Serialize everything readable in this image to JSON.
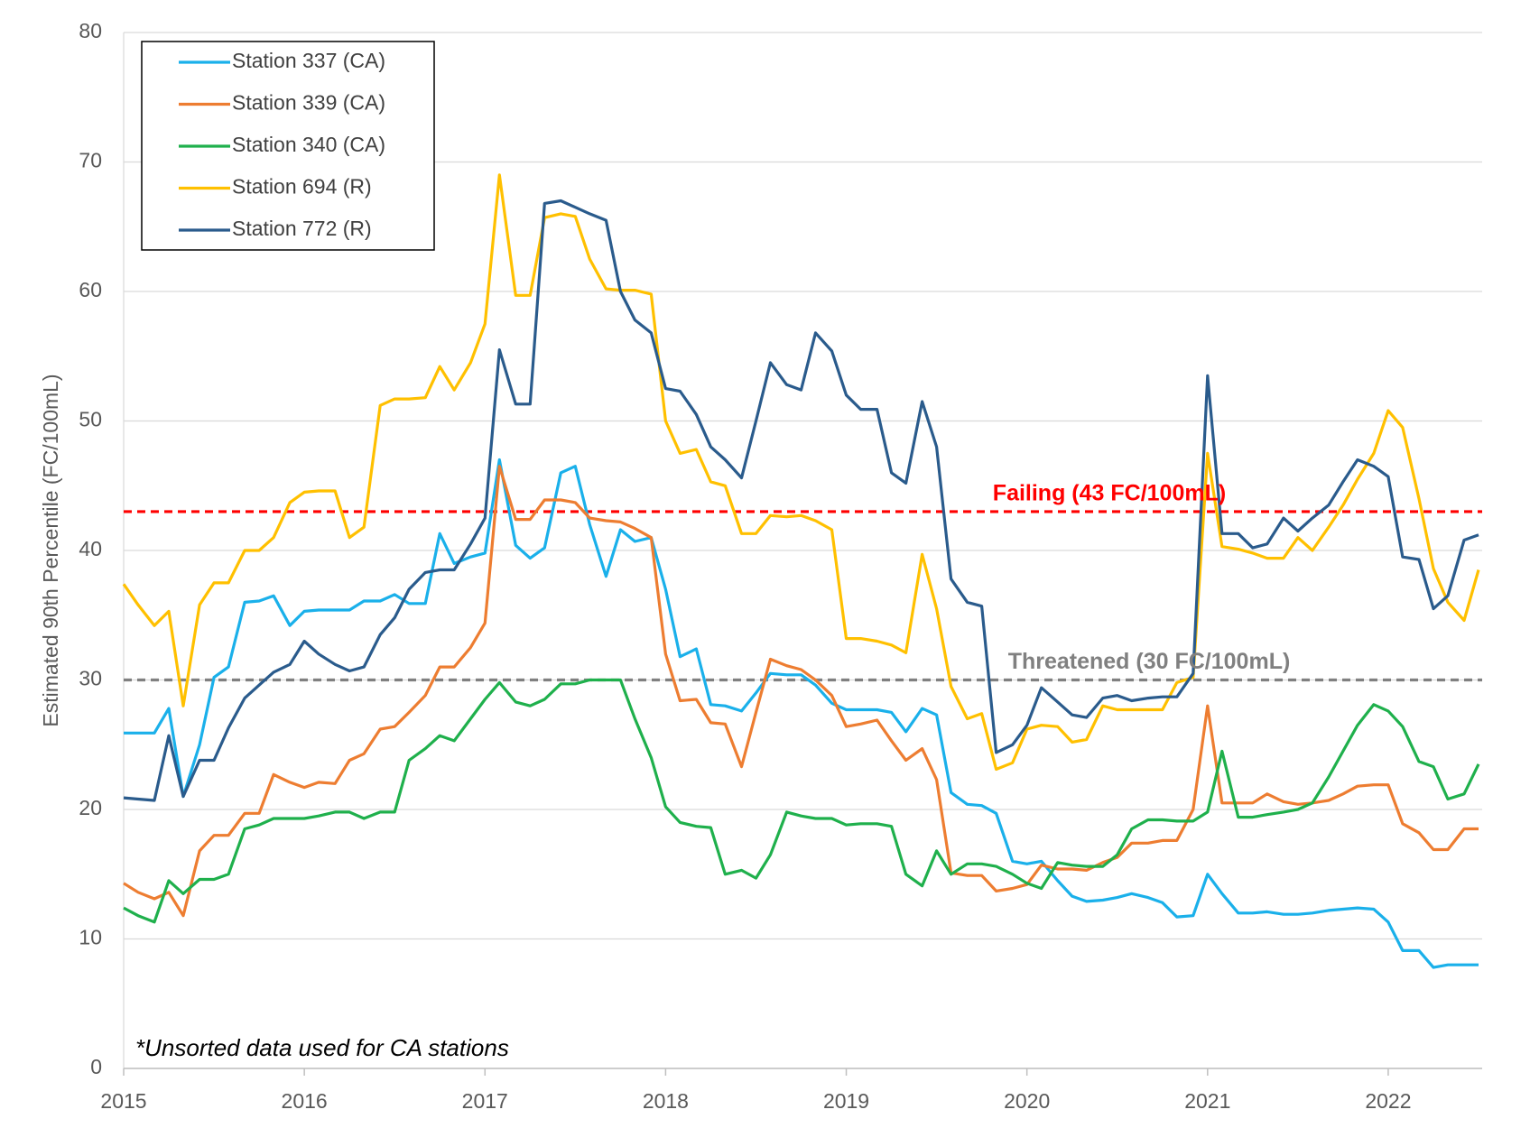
{
  "chart_data": {
    "type": "line",
    "ylabel": "Estimated 90th Percentile (FC/100mL)",
    "annotation": "*Unsorted data used for CA stations",
    "x": [
      2015,
      2015.08,
      2015.17,
      2015.25,
      2015.33,
      2015.42,
      2015.5,
      2015.58,
      2015.67,
      2015.75,
      2015.83,
      2015.92,
      2016,
      2016.08,
      2016.17,
      2016.25,
      2016.33,
      2016.42,
      2016.5,
      2016.58,
      2016.67,
      2016.75,
      2016.83,
      2016.92,
      2017,
      2017.08,
      2017.17,
      2017.25,
      2017.33,
      2017.42,
      2017.5,
      2017.58,
      2017.67,
      2017.75,
      2017.83,
      2017.92,
      2018,
      2018.08,
      2018.17,
      2018.25,
      2018.33,
      2018.42,
      2018.5,
      2018.58,
      2018.67,
      2018.75,
      2018.83,
      2018.92,
      2019,
      2019.08,
      2019.17,
      2019.25,
      2019.33,
      2019.42,
      2019.5,
      2019.58,
      2019.67,
      2019.75,
      2019.83,
      2019.92,
      2020,
      2020.08,
      2020.17,
      2020.25,
      2020.33,
      2020.42,
      2020.5,
      2020.58,
      2020.67,
      2020.75,
      2020.83,
      2020.92,
      2021,
      2021.08,
      2021.17,
      2021.25,
      2021.33,
      2021.42,
      2021.5,
      2021.58,
      2021.67,
      2021.75,
      2021.83,
      2021.92,
      2022,
      2022.08,
      2022.17,
      2022.25,
      2022.33,
      2022.42,
      2022.5
    ],
    "series": [
      {
        "name": "Station 337 (CA)",
        "color": "#1ab0ea",
        "values": [
          25.9,
          25.9,
          25.9,
          27.8,
          21,
          25,
          30.2,
          31,
          36,
          36.1,
          36.5,
          34.2,
          35.3,
          35.4,
          35.4,
          35.4,
          36.1,
          36.1,
          36.6,
          35.9,
          35.9,
          41.3,
          39,
          39.5,
          39.8,
          47,
          40.4,
          39.4,
          40.2,
          46,
          46.5,
          42,
          38,
          41.6,
          40.7,
          41,
          37,
          31.8,
          32.4,
          28.1,
          28,
          27.6,
          29,
          30.5,
          30.4,
          30.4,
          29.6,
          28.2,
          27.7,
          27.7,
          27.7,
          27.5,
          26,
          27.8,
          27.3,
          21.3,
          20.4,
          20.3,
          19.7,
          16,
          15.8,
          16,
          14.5,
          13.3,
          12.9,
          13,
          13.2,
          13.5,
          13.2,
          12.8,
          11.7,
          11.8,
          15,
          13.5,
          12,
          12,
          12.1,
          11.9,
          11.9,
          12,
          12.2,
          12.3,
          12.4,
          12.3,
          11.3,
          9.1,
          9.1,
          7.8,
          8,
          8,
          8
        ]
      },
      {
        "name": "Station 339 (CA)",
        "color": "#ed7d31",
        "values": [
          14.3,
          13.6,
          13.1,
          13.6,
          11.8,
          16.8,
          18,
          18,
          19.7,
          19.7,
          22.7,
          22.1,
          21.7,
          22.1,
          22,
          23.8,
          24.3,
          26.2,
          26.4,
          27.5,
          28.8,
          31,
          31,
          32.5,
          34.4,
          46.5,
          42.4,
          42.4,
          43.9,
          43.9,
          43.7,
          42.5,
          42.3,
          42.2,
          41.7,
          41,
          32,
          28.4,
          28.5,
          26.7,
          26.6,
          23.3,
          27.5,
          31.6,
          31.1,
          30.8,
          30,
          28.8,
          26.4,
          26.6,
          26.9,
          25.3,
          23.8,
          24.7,
          22.3,
          15.1,
          14.9,
          14.9,
          13.7,
          13.9,
          14.2,
          15.7,
          15.4,
          15.4,
          15.3,
          15.9,
          16.3,
          17.4,
          17.4,
          17.6,
          17.6,
          20,
          28,
          20.5,
          20.5,
          20.5,
          21.2,
          20.6,
          20.4,
          20.5,
          20.7,
          21.2,
          21.8,
          21.9,
          21.9,
          18.9,
          18.2,
          16.9,
          16.9,
          18.5,
          18.5
        ]
      },
      {
        "name": "Station 340 (CA)",
        "color": "#1fb04c",
        "values": [
          12.4,
          11.8,
          11.3,
          14.5,
          13.5,
          14.6,
          14.6,
          15,
          18.5,
          18.8,
          19.3,
          19.3,
          19.3,
          19.5,
          19.8,
          19.8,
          19.3,
          19.8,
          19.8,
          23.8,
          24.7,
          25.7,
          25.3,
          27,
          28.5,
          29.8,
          28.3,
          28,
          28.5,
          29.7,
          29.7,
          30,
          30,
          30,
          27,
          24,
          20.2,
          19,
          18.7,
          18.6,
          15,
          15.3,
          14.7,
          16.5,
          19.8,
          19.5,
          19.3,
          19.3,
          18.8,
          18.9,
          18.9,
          18.7,
          15,
          14.1,
          16.8,
          15,
          15.8,
          15.8,
          15.6,
          15,
          14.3,
          13.9,
          15.9,
          15.7,
          15.6,
          15.6,
          16.5,
          18.5,
          19.2,
          19.2,
          19.1,
          19.1,
          19.8,
          24.5,
          19.4,
          19.4,
          19.6,
          19.8,
          20,
          20.5,
          22.5,
          24.5,
          26.5,
          28.1,
          27.6,
          26.4,
          23.7,
          23.3,
          20.8,
          21.2,
          23.5
        ]
      },
      {
        "name": "Station 694 (R)",
        "color": "#ffc000",
        "values": [
          37.4,
          35.8,
          34.2,
          35.3,
          28,
          35.8,
          37.5,
          37.5,
          40,
          40,
          41,
          43.7,
          44.5,
          44.6,
          44.6,
          41,
          41.8,
          51.2,
          51.7,
          51.7,
          51.8,
          54.2,
          52.4,
          54.5,
          57.5,
          69,
          59.7,
          59.7,
          65.7,
          66,
          65.8,
          62.5,
          60.2,
          60.1,
          60.1,
          59.8,
          50,
          47.5,
          47.8,
          45.3,
          45,
          41.3,
          41.3,
          42.7,
          42.6,
          42.7,
          42.3,
          41.6,
          33.2,
          33.2,
          33,
          32.7,
          32.1,
          39.7,
          35.5,
          29.5,
          27,
          27.4,
          23.1,
          23.6,
          26.2,
          26.5,
          26.4,
          25.2,
          25.4,
          28,
          27.7,
          27.7,
          27.7,
          27.7,
          29.8,
          30.2,
          47.5,
          40.3,
          40.1,
          39.8,
          39.4,
          39.4,
          41,
          40,
          41.8,
          43.5,
          45.5,
          47.5,
          50.8,
          49.5,
          44,
          38.6,
          36,
          34.6,
          38.5
        ]
      },
      {
        "name": "Station 772 (R)",
        "color": "#2a5b8c",
        "values": [
          20.9,
          20.8,
          20.7,
          25.7,
          21,
          23.8,
          23.8,
          26.3,
          28.6,
          29.6,
          30.6,
          31.2,
          33,
          32,
          31.2,
          30.7,
          31,
          33.5,
          34.8,
          37,
          38.3,
          38.5,
          38.5,
          40.5,
          42.5,
          55.5,
          51.3,
          51.3,
          66.8,
          67,
          66.5,
          66,
          65.5,
          60,
          57.8,
          56.8,
          52.5,
          52.3,
          50.5,
          48,
          47,
          45.6,
          50,
          54.5,
          52.8,
          52.4,
          56.8,
          55.4,
          52,
          50.9,
          50.9,
          46,
          45.2,
          51.5,
          48,
          37.8,
          36,
          35.7,
          24.4,
          25,
          26.5,
          29.4,
          28.3,
          27.3,
          27.1,
          28.6,
          28.8,
          28.4,
          28.6,
          28.7,
          28.7,
          30.5,
          53.5,
          41.3,
          41.3,
          40.2,
          40.5,
          42.5,
          41.5,
          42.5,
          43.5,
          45.3,
          47,
          46.5,
          45.7,
          39.5,
          39.3,
          35.5,
          36.5,
          40.8,
          41.2
        ]
      }
    ],
    "reference_lines": [
      {
        "value": 43,
        "label": "Failing (43 FC/100mL)",
        "color": "#ff0000"
      },
      {
        "value": 30,
        "label": "Threatened (30 FC/100mL)",
        "color": "#808080"
      }
    ],
    "xlim": [
      2015,
      2022.52
    ],
    "xticks": [
      2015,
      2016,
      2017,
      2018,
      2019,
      2020,
      2021,
      2022
    ],
    "ylim": [
      0,
      80
    ],
    "yticks": [
      0,
      10,
      20,
      30,
      40,
      50,
      60,
      70,
      80
    ],
    "grid": true,
    "legend": "top-left"
  }
}
